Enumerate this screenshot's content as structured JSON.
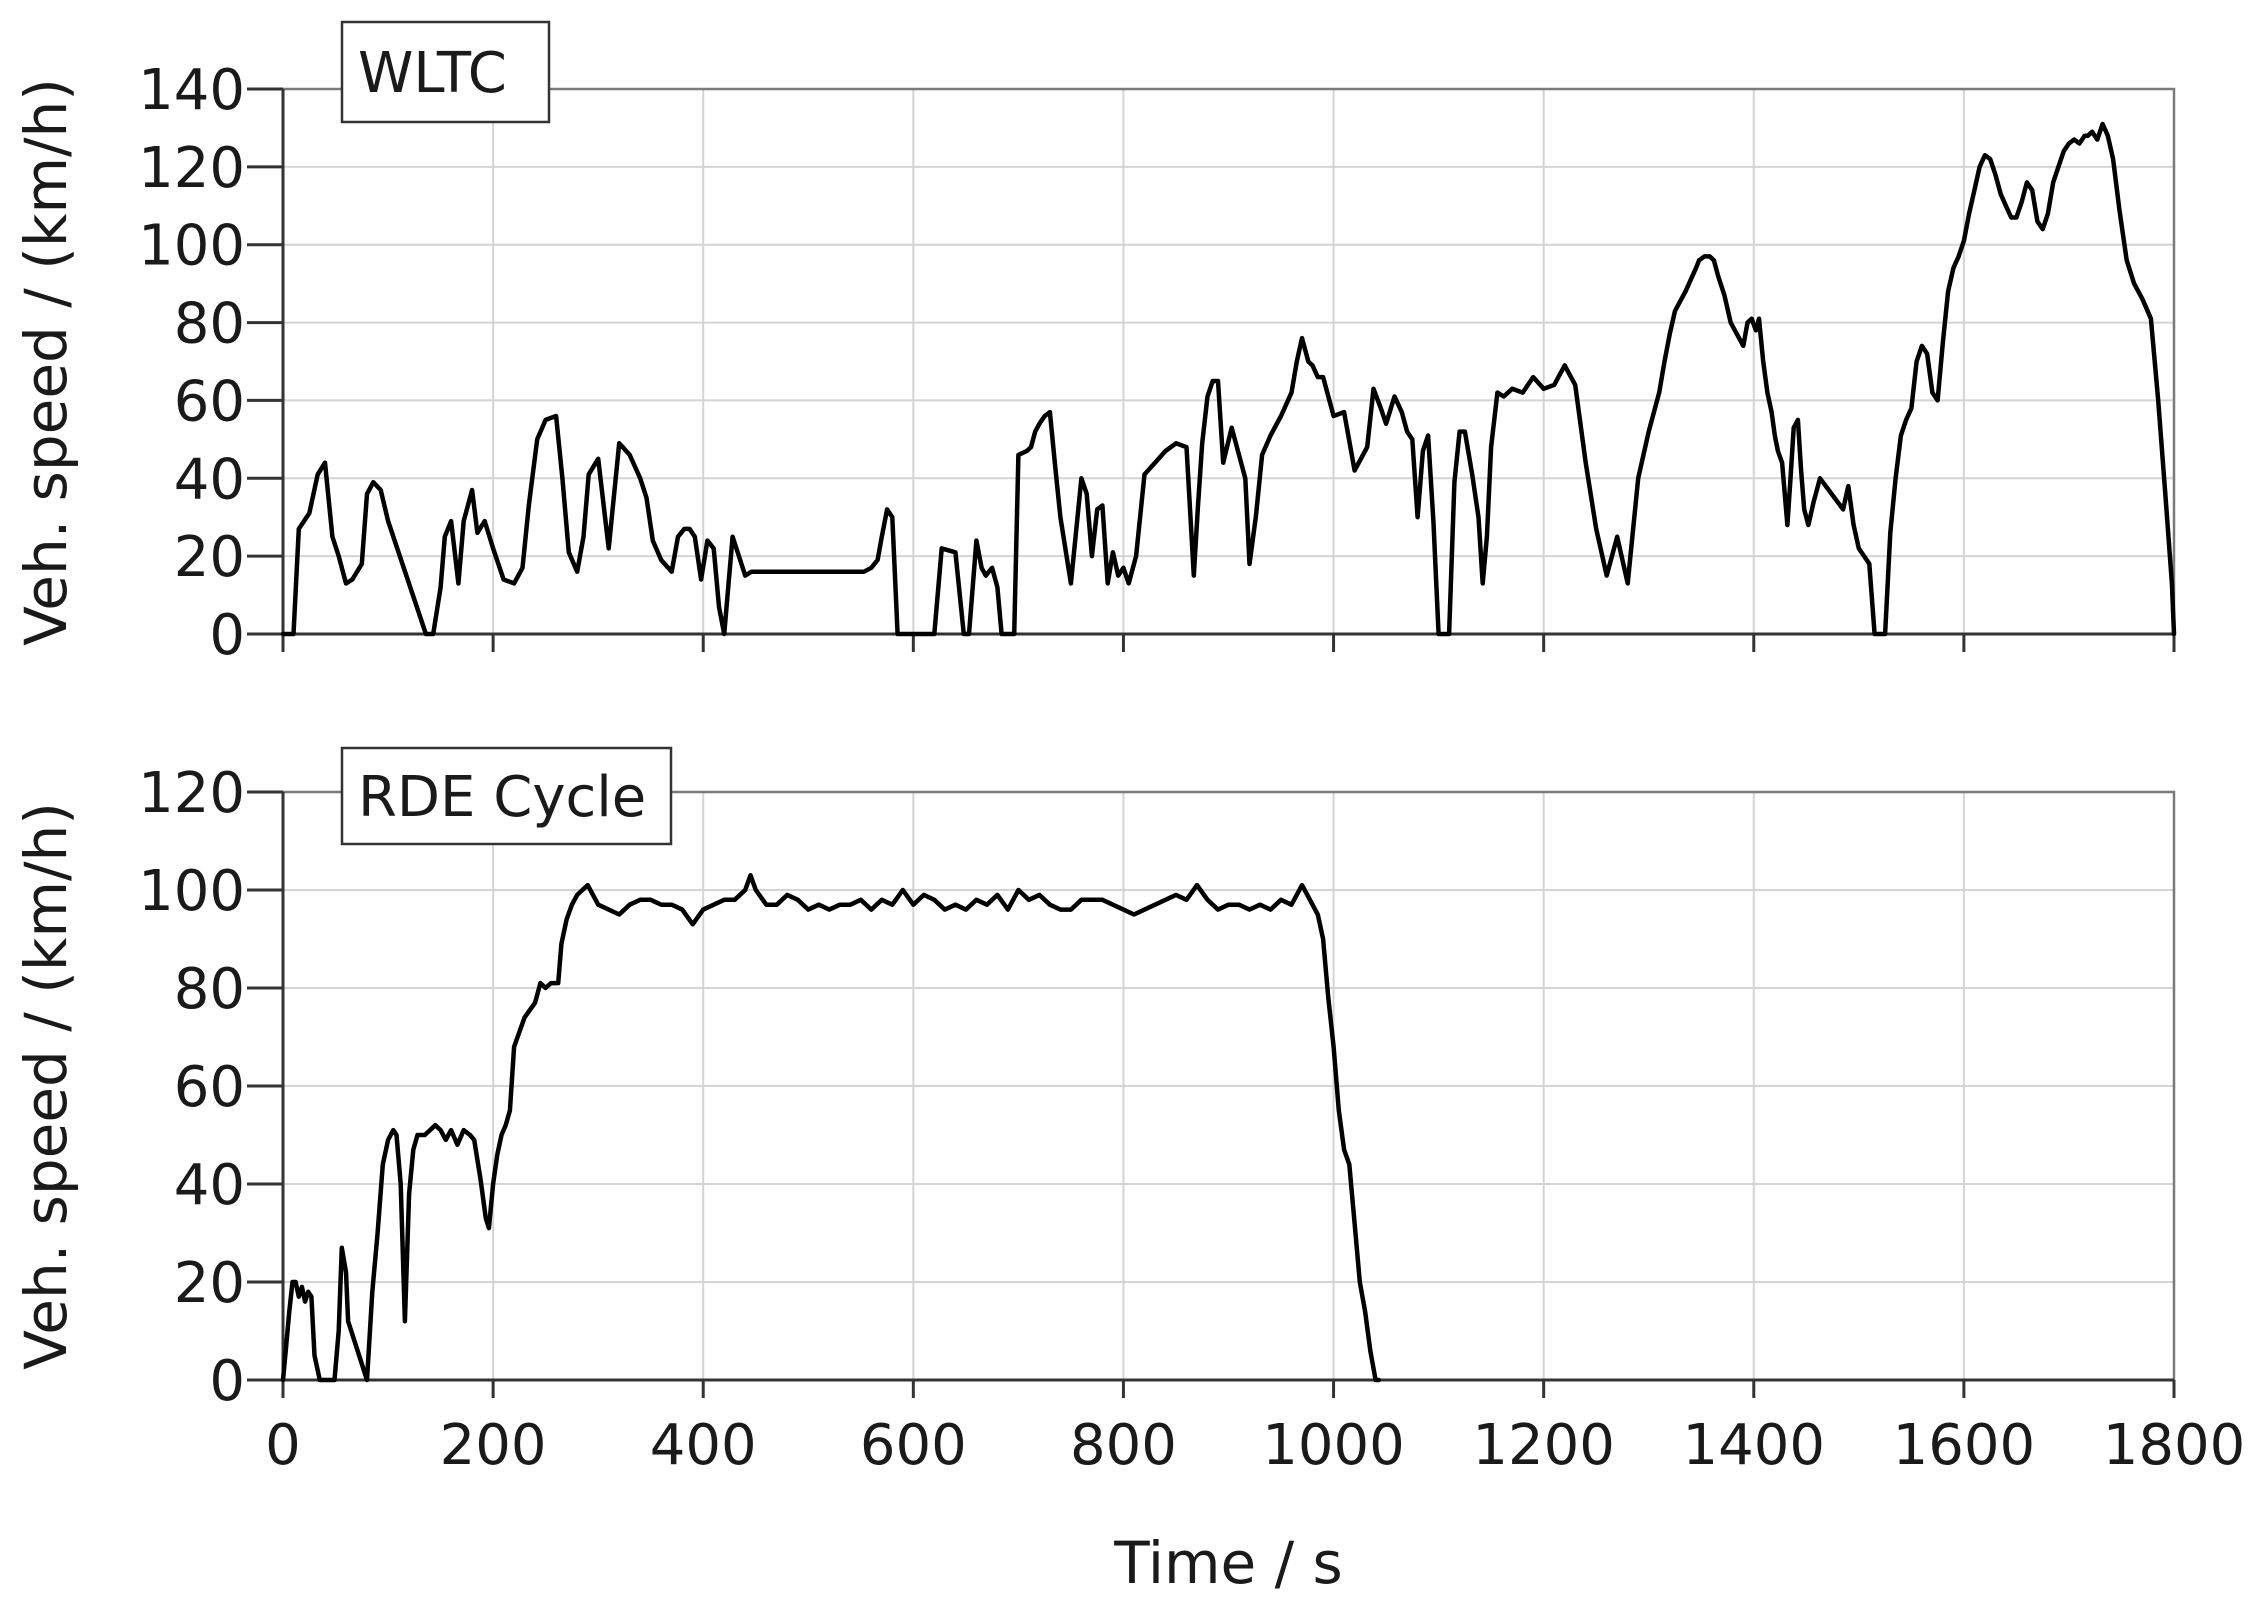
{
  "chart_data": [
    {
      "type": "line",
      "legend": "WLTC",
      "legend_placement": "top-left",
      "xlabel": "",
      "ylabel": "Veh. speed / (km/h)",
      "xlim": [
        0,
        1800
      ],
      "ylim": [
        0,
        140
      ],
      "x_ticks": [
        0,
        200,
        400,
        600,
        800,
        1000,
        1200,
        1400,
        1600,
        1800
      ],
      "y_ticks": [
        0,
        20,
        40,
        60,
        80,
        100,
        120,
        140
      ],
      "show_x_tick_labels": false,
      "grid": true,
      "series": [
        {
          "name": "WLTC",
          "color": "#000000",
          "x": [
            0,
            10,
            15,
            25,
            33,
            40,
            47,
            53,
            60,
            66,
            75,
            80,
            86,
            93,
            100,
            136,
            143,
            150,
            154,
            160,
            167,
            172,
            180,
            185,
            192,
            200,
            210,
            220,
            228,
            234,
            242,
            250,
            260,
            266,
            272,
            280,
            286,
            291,
            300,
            310,
            320,
            330,
            340,
            346,
            352,
            360,
            370,
            376,
            382,
            387,
            392,
            398,
            404,
            410,
            415,
            420,
            428,
            434,
            440,
            446,
            553,
            560,
            566,
            570,
            575,
            580,
            585,
            590,
            597,
            602,
            608,
            620,
            627,
            640,
            648,
            653,
            660,
            665,
            669,
            675,
            680,
            684,
            690,
            696,
            700,
            708,
            712,
            716,
            720,
            725,
            730,
            735,
            740,
            750,
            760,
            765,
            770,
            775,
            780,
            785,
            790,
            795,
            800,
            805,
            812,
            820,
            830,
            840,
            850,
            860,
            867,
            871,
            875,
            880,
            885,
            890,
            895,
            903,
            910,
            916,
            920,
            926,
            932,
            940,
            950,
            960,
            965,
            970,
            976,
            980,
            985,
            990,
            1000,
            1010,
            1020,
            1032,
            1038,
            1045,
            1050,
            1058,
            1065,
            1070,
            1075,
            1080,
            1085,
            1090,
            1095,
            1100,
            1105,
            1110,
            1115,
            1120,
            1125,
            1132,
            1138,
            1142,
            1146,
            1150,
            1156,
            1162,
            1170,
            1180,
            1190,
            1200,
            1210,
            1220,
            1230,
            1240,
            1250,
            1260,
            1270,
            1280,
            1290,
            1300,
            1310,
            1315,
            1320,
            1325,
            1335,
            1340,
            1345,
            1348,
            1353,
            1358,
            1362,
            1366,
            1372,
            1378,
            1382,
            1386,
            1390,
            1394,
            1398,
            1402,
            1405,
            1409,
            1413,
            1417,
            1420,
            1423,
            1427,
            1432,
            1435,
            1438,
            1442,
            1445,
            1448,
            1452,
            1457,
            1463,
            1485,
            1490,
            1495,
            1500,
            1505,
            1510,
            1515,
            1520,
            1525,
            1530,
            1535,
            1540,
            1545,
            1550,
            1555,
            1560,
            1565,
            1570,
            1575,
            1580,
            1585,
            1590,
            1595,
            1600,
            1605,
            1610,
            1615,
            1620,
            1625,
            1630,
            1635,
            1640,
            1645,
            1650,
            1655,
            1660,
            1665,
            1670,
            1675,
            1680,
            1685,
            1690,
            1695,
            1700,
            1705,
            1710,
            1715,
            1718,
            1722,
            1727,
            1732,
            1737,
            1742,
            1748,
            1755,
            1762,
            1770,
            1778,
            1785,
            1792,
            1798,
            1800
          ],
          "y": [
            0,
            0,
            27,
            31,
            41,
            44,
            25,
            20,
            13,
            14,
            18,
            36,
            39,
            37,
            29,
            0,
            0,
            12,
            25,
            29,
            13,
            29,
            37,
            26,
            29,
            22,
            14,
            13,
            17,
            33,
            50,
            55,
            56,
            40,
            21,
            16,
            25,
            41,
            45,
            22,
            49,
            46,
            40,
            35,
            24,
            19,
            16,
            25,
            27,
            27,
            25,
            14,
            24,
            22,
            7,
            0,
            25,
            20,
            15,
            16,
            16,
            17,
            19,
            25,
            32,
            30,
            0,
            0,
            0,
            0,
            0,
            0,
            22,
            21,
            0,
            0,
            24,
            17,
            15,
            17,
            12,
            0,
            0,
            0,
            46,
            47,
            48,
            52,
            54,
            56,
            57,
            43,
            30,
            13,
            40,
            36,
            20,
            32,
            33,
            13,
            21,
            15,
            17,
            13,
            20,
            41,
            44,
            47,
            49,
            48,
            15,
            33,
            49,
            61,
            65,
            65,
            44,
            53,
            46,
            40,
            18,
            30,
            46,
            51,
            56,
            62,
            70,
            76,
            70,
            69,
            66,
            66,
            56,
            57,
            42,
            48,
            63,
            58,
            54,
            61,
            57,
            52,
            50,
            30,
            47,
            51,
            29,
            0,
            0,
            0,
            39,
            52,
            52,
            41,
            30,
            13,
            25,
            48,
            62,
            61,
            63,
            62,
            66,
            63,
            64,
            69,
            64,
            44,
            27,
            15,
            25,
            13,
            40,
            52,
            62,
            70,
            77,
            83,
            88,
            91,
            94,
            96,
            97,
            97,
            96,
            92,
            87,
            80,
            78,
            76,
            74,
            80,
            81,
            78,
            81,
            70,
            62,
            57,
            51,
            47,
            44,
            28,
            40,
            53,
            55,
            42,
            32,
            28,
            34,
            40,
            32,
            38,
            28,
            22,
            20,
            18,
            0,
            0,
            0,
            26,
            40,
            51,
            55,
            58,
            70,
            74,
            72,
            62,
            60,
            75,
            88,
            94,
            97,
            101,
            108,
            114,
            120,
            123,
            122,
            118,
            113,
            110,
            107,
            107,
            111,
            116,
            114,
            106,
            104,
            108,
            116,
            120,
            124,
            126,
            127,
            126,
            128,
            128,
            129,
            127,
            131,
            128,
            122,
            109,
            96,
            90,
            86,
            81,
            60,
            35,
            13,
            0
          ]
        }
      ]
    },
    {
      "type": "line",
      "legend": "RDE Cycle",
      "legend_placement": "top-left",
      "xlabel": "Time / s",
      "ylabel": "Veh. speed / (km/h)",
      "xlim": [
        0,
        1800
      ],
      "ylim": [
        0,
        120
      ],
      "x_ticks": [
        0,
        200,
        400,
        600,
        800,
        1000,
        1200,
        1400,
        1600,
        1800
      ],
      "y_ticks": [
        0,
        20,
        40,
        60,
        80,
        100,
        120
      ],
      "show_x_tick_labels": true,
      "grid": true,
      "series": [
        {
          "name": "RDE Cycle",
          "color": "#000000",
          "x": [
            0,
            3,
            6,
            9,
            12,
            15,
            18,
            21,
            24,
            27,
            30,
            35,
            49,
            53,
            56,
            60,
            62,
            80,
            85,
            90,
            95,
            100,
            105,
            108,
            112,
            116,
            120,
            124,
            128,
            135,
            145,
            150,
            155,
            160,
            166,
            172,
            178,
            182,
            188,
            193,
            196,
            200,
            204,
            208,
            212,
            216,
            220,
            230,
            240,
            245,
            250,
            255,
            262,
            265,
            270,
            275,
            280,
            290,
            300,
            310,
            320,
            330,
            340,
            350,
            360,
            370,
            380,
            390,
            400,
            410,
            420,
            430,
            440,
            445,
            450,
            460,
            470,
            480,
            490,
            500,
            510,
            520,
            530,
            540,
            550,
            560,
            570,
            580,
            590,
            600,
            610,
            620,
            630,
            640,
            650,
            660,
            670,
            680,
            690,
            700,
            710,
            720,
            730,
            740,
            750,
            760,
            770,
            780,
            790,
            800,
            810,
            820,
            830,
            840,
            850,
            860,
            870,
            880,
            890,
            900,
            910,
            920,
            930,
            940,
            950,
            960,
            970,
            975,
            985,
            990,
            995,
            1000,
            1005,
            1010,
            1015,
            1020,
            1025,
            1030,
            1035,
            1040,
            1043
          ],
          "y": [
            0,
            7,
            14,
            20,
            20,
            17,
            19,
            16,
            18,
            17,
            5,
            0,
            0,
            10,
            27,
            22,
            12,
            0,
            18,
            30,
            44,
            49,
            51,
            50,
            40,
            12,
            38,
            47,
            50,
            50,
            52,
            51,
            49,
            51,
            48,
            51,
            50,
            49,
            41,
            33,
            31,
            40,
            46,
            50,
            52,
            55,
            68,
            74,
            77,
            81,
            80,
            81,
            81,
            89,
            94,
            97,
            99,
            101,
            97,
            96,
            95,
            97,
            98,
            98,
            97,
            97,
            96,
            93,
            96,
            97,
            98,
            98,
            100,
            103,
            100,
            97,
            97,
            99,
            98,
            96,
            97,
            96,
            97,
            97,
            98,
            96,
            98,
            97,
            100,
            97,
            99,
            98,
            96,
            97,
            96,
            98,
            97,
            99,
            96,
            100,
            98,
            99,
            97,
            96,
            96,
            98,
            98,
            98,
            97,
            96,
            95,
            96,
            97,
            98,
            99,
            98,
            101,
            98,
            96,
            97,
            97,
            96,
            97,
            96,
            98,
            97,
            101,
            99,
            95,
            90,
            78,
            68,
            55,
            47,
            44,
            32,
            20,
            14,
            6,
            0,
            0
          ]
        }
      ]
    }
  ]
}
